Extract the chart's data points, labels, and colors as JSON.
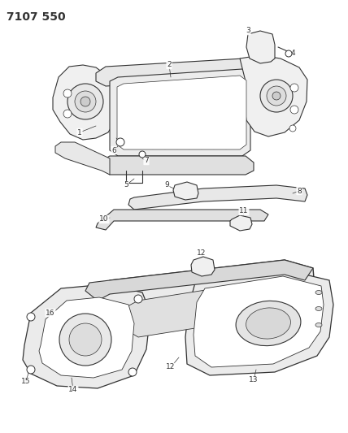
{
  "title": "7107 550",
  "bg_color": "#ffffff",
  "line_color": "#333333",
  "fig_width": 4.28,
  "fig_height": 5.33,
  "dpi": 100,
  "label_fontsize": 6.5,
  "title_fontsize": 10
}
